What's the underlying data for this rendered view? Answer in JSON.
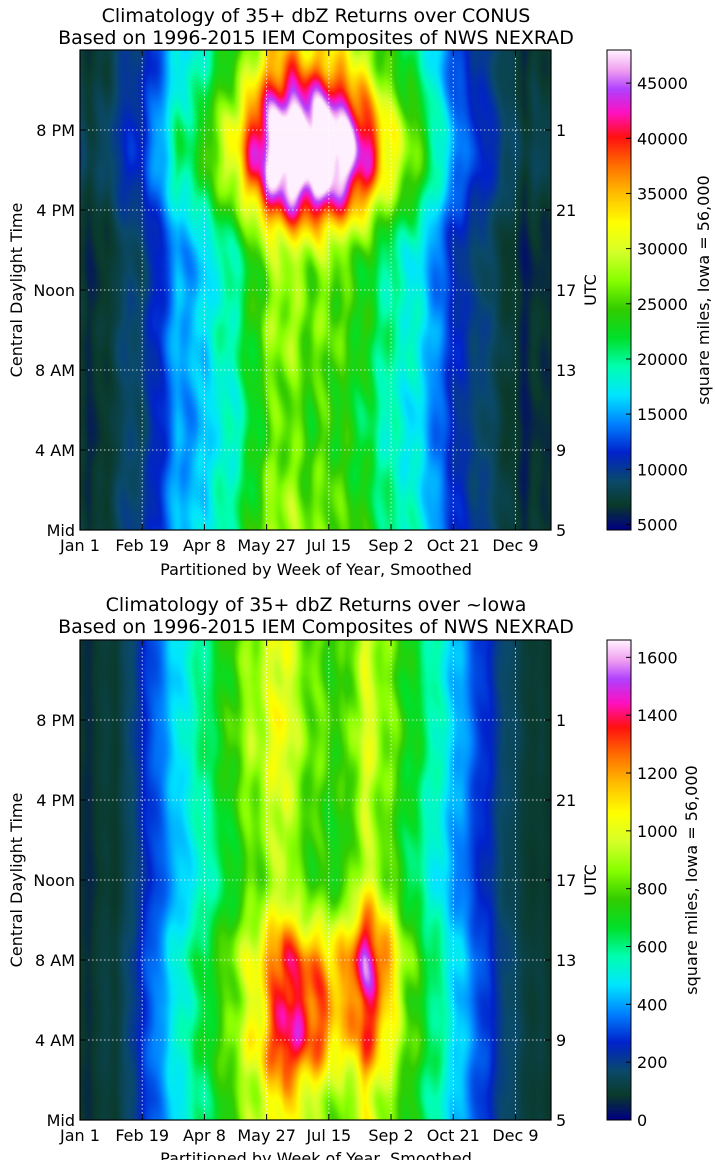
{
  "colors": {
    "colormap": "gist_ncar",
    "stops": [
      {
        "pos": 0.0,
        "color": "#000080"
      },
      {
        "pos": 0.05,
        "color": "#0a3a2a"
      },
      {
        "pos": 0.1,
        "color": "#0a4a6a"
      },
      {
        "pos": 0.16,
        "color": "#0022cc"
      },
      {
        "pos": 0.22,
        "color": "#0080ff"
      },
      {
        "pos": 0.28,
        "color": "#00e5ff"
      },
      {
        "pos": 0.34,
        "color": "#00ffb0"
      },
      {
        "pos": 0.4,
        "color": "#00e02a"
      },
      {
        "pos": 0.46,
        "color": "#33cc00"
      },
      {
        "pos": 0.52,
        "color": "#88ff00"
      },
      {
        "pos": 0.58,
        "color": "#d6ff2a"
      },
      {
        "pos": 0.64,
        "color": "#ffff00"
      },
      {
        "pos": 0.7,
        "color": "#ffc000"
      },
      {
        "pos": 0.76,
        "color": "#ff7000"
      },
      {
        "pos": 0.82,
        "color": "#ff1010"
      },
      {
        "pos": 0.87,
        "color": "#ff10c0"
      },
      {
        "pos": 0.92,
        "color": "#b040ff"
      },
      {
        "pos": 0.96,
        "color": "#f0a0f0"
      },
      {
        "pos": 1.0,
        "color": "#fff0ff"
      }
    ]
  },
  "chart_data": [
    {
      "type": "heatmap",
      "title": "Climatology of 35+ dbZ Returns over CONUS\nBased on 1996-2015 IEM Composites of NWS NEXRAD",
      "xlabel": "Partitioned by Week of Year, Smoothed",
      "ylabel": "Central Daylight Time",
      "ylabel_right": "UTC",
      "colorbar_label": "square miles, Iowa = 56,000",
      "x_range": [
        1,
        54
      ],
      "y_range": [
        0,
        24
      ],
      "grid": true,
      "x_ticks": [
        {
          "week": 1,
          "label": "Jan 1"
        },
        {
          "week": 8,
          "label": "Feb 19"
        },
        {
          "week": 15,
          "label": "Apr 8"
        },
        {
          "week": 22,
          "label": "May 27"
        },
        {
          "week": 29,
          "label": "Jul 15"
        },
        {
          "week": 36,
          "label": "Sep 2"
        },
        {
          "week": 43,
          "label": "Oct 21"
        },
        {
          "week": 50,
          "label": "Dec 9"
        }
      ],
      "y_ticks_left": [
        {
          "hour": 0,
          "label": "Mid"
        },
        {
          "hour": 4,
          "label": "4 AM"
        },
        {
          "hour": 8,
          "label": "8 AM"
        },
        {
          "hour": 12,
          "label": "Noon"
        },
        {
          "hour": 16,
          "label": "4 PM"
        },
        {
          "hour": 20,
          "label": "8 PM"
        }
      ],
      "y_ticks_right": [
        {
          "hour": 0,
          "label": "5"
        },
        {
          "hour": 4,
          "label": "9"
        },
        {
          "hour": 8,
          "label": "13"
        },
        {
          "hour": 12,
          "label": "17"
        },
        {
          "hour": 16,
          "label": "21"
        },
        {
          "hour": 20,
          "label": "1"
        }
      ],
      "colorbar_range": [
        4500,
        48000
      ],
      "colorbar_ticks": [
        5000,
        10000,
        15000,
        20000,
        25000,
        30000,
        35000,
        40000,
        45000
      ],
      "colorbar_tick_labels": [
        "5000",
        "10000",
        "15000",
        "20000",
        "25000",
        "30000",
        "35000",
        "40000",
        "45000"
      ],
      "week_profile": [
        7500,
        6500,
        7000,
        7000,
        8500,
        9000,
        9500,
        9500,
        11000,
        12500,
        14000,
        16000,
        16000,
        16000,
        17000,
        19000,
        19000,
        20000,
        21000,
        23000,
        25000,
        27000,
        28000,
        28500,
        28000,
        27000,
        26000,
        26500,
        27000,
        25500,
        25000,
        24500,
        23500,
        22500,
        21000,
        20000,
        19500,
        19000,
        18000,
        17000,
        15000,
        13500,
        12000,
        11000,
        10000,
        10000,
        9000,
        8500,
        7500,
        7000,
        6000,
        7000,
        6500,
        7000
      ],
      "hour_profile": [
        1.0,
        0.99,
        0.97,
        0.95,
        0.93,
        0.92,
        0.92,
        0.93,
        0.95,
        0.97,
        0.98,
        0.96,
        0.93,
        0.9,
        0.9,
        0.94,
        1.02,
        1.1,
        1.16,
        1.18,
        1.16,
        1.11,
        1.06,
        1.02
      ],
      "hot_spot": {
        "week_center": 27.5,
        "week_width": 5.5,
        "hour_center": 18.8,
        "hour_width": 2.6,
        "amplitude": 17000
      },
      "summer_afternoon_boost": {
        "week_center": 26.5,
        "week_width": 8,
        "hour_center": 20,
        "hour_width": 4,
        "amplitude": 7000
      }
    },
    {
      "type": "heatmap",
      "title": "Climatology of 35+ dbZ Returns over ~Iowa\nBased on 1996-2015 IEM Composites of NWS NEXRAD",
      "xlabel": "Partitioned by Week of Year, Smoothed",
      "ylabel": "Central Daylight Time",
      "ylabel_right": "UTC",
      "colorbar_label": "square miles, Iowa = 56,000",
      "x_range": [
        1,
        54
      ],
      "y_range": [
        0,
        24
      ],
      "grid": true,
      "x_ticks": [
        {
          "week": 1,
          "label": "Jan 1"
        },
        {
          "week": 8,
          "label": "Feb 19"
        },
        {
          "week": 15,
          "label": "Apr 8"
        },
        {
          "week": 22,
          "label": "May 27"
        },
        {
          "week": 29,
          "label": "Jul 15"
        },
        {
          "week": 36,
          "label": "Sep 2"
        },
        {
          "week": 43,
          "label": "Oct 21"
        },
        {
          "week": 50,
          "label": "Dec 9"
        }
      ],
      "y_ticks_left": [
        {
          "hour": 0,
          "label": "Mid"
        },
        {
          "hour": 4,
          "label": "4 AM"
        },
        {
          "hour": 8,
          "label": "8 AM"
        },
        {
          "hour": 12,
          "label": "Noon"
        },
        {
          "hour": 16,
          "label": "4 PM"
        },
        {
          "hour": 20,
          "label": "8 PM"
        }
      ],
      "y_ticks_right": [
        {
          "hour": 0,
          "label": "5"
        },
        {
          "hour": 4,
          "label": "9"
        },
        {
          "hour": 8,
          "label": "13"
        },
        {
          "hour": 12,
          "label": "17"
        },
        {
          "hour": 16,
          "label": "21"
        },
        {
          "hour": 20,
          "label": "1"
        }
      ],
      "colorbar_range": [
        0,
        1660
      ],
      "colorbar_ticks": [
        0,
        200,
        400,
        600,
        800,
        1000,
        1200,
        1400,
        1600
      ],
      "colorbar_tick_labels": [
        "0",
        "200",
        "400",
        "600",
        "800",
        "1000",
        "1200",
        "1400",
        "1600"
      ],
      "week_profile": [
        80,
        60,
        90,
        110,
        90,
        140,
        180,
        260,
        300,
        360,
        420,
        460,
        520,
        560,
        600,
        660,
        700,
        760,
        820,
        880,
        900,
        960,
        1000,
        1060,
        920,
        860,
        820,
        800,
        780,
        760,
        760,
        880,
        980,
        940,
        880,
        820,
        760,
        700,
        660,
        600,
        560,
        500,
        440,
        400,
        340,
        300,
        260,
        200,
        160,
        140,
        110,
        90,
        100,
        80
      ],
      "hour_profile": [
        1.02,
        1.0,
        1.04,
        1.1,
        1.12,
        1.08,
        1.04,
        1.08,
        1.12,
        1.06,
        0.98,
        0.92,
        0.88,
        0.9,
        0.92,
        0.94,
        0.96,
        0.98,
        1.0,
        1.02,
        1.02,
        1.0,
        0.98,
        1.0
      ],
      "hot_spot": {
        "week_center": 26.5,
        "week_width": 3,
        "hour_center": 5.5,
        "hour_width": 3,
        "amplitude": 450
      },
      "summer_afternoon_boost": {
        "week_center": 33.5,
        "week_width": 2.5,
        "hour_center": 7.5,
        "hour_width": 3,
        "amplitude": 380
      }
    }
  ]
}
